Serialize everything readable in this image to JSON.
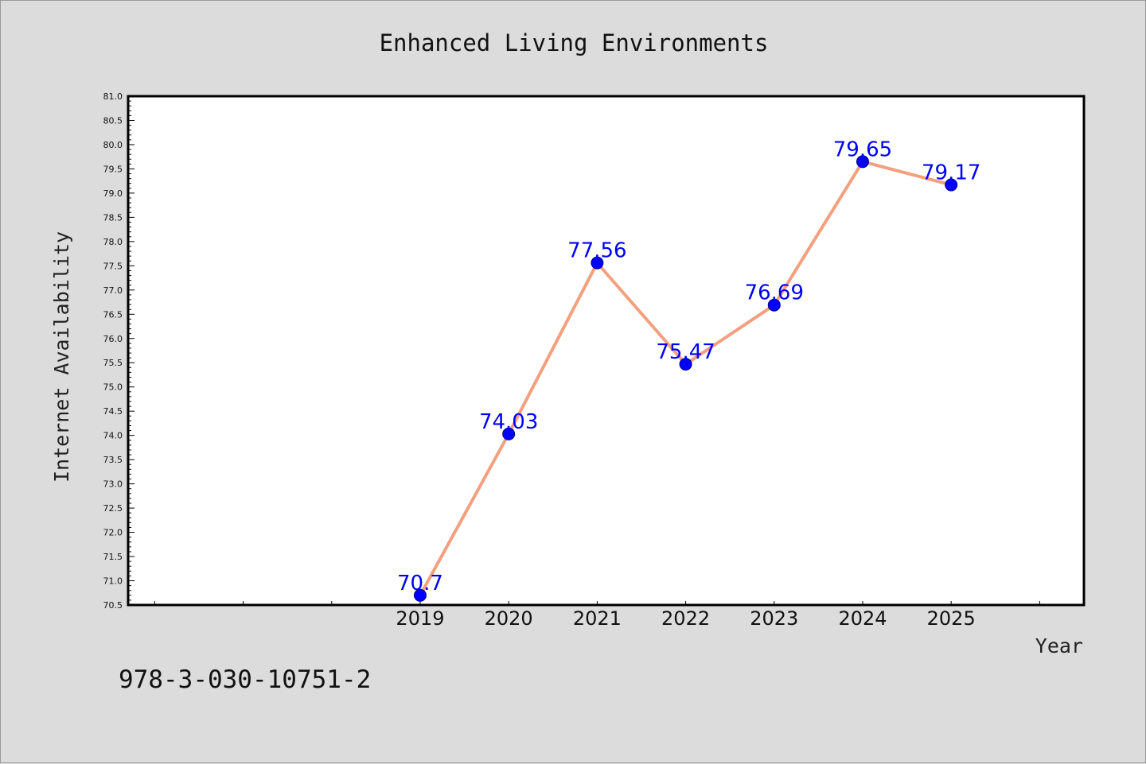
{
  "figure": {
    "footer": "978-3-030-10751-2",
    "background": "#dcdcdc",
    "plot_background": "#ffffff"
  },
  "chart_data": {
    "type": "line",
    "title": "Enhanced Living Environments",
    "xlabel": "Year",
    "ylabel": "Internet Availability",
    "x": [
      2019,
      2020,
      2021,
      2022,
      2023,
      2024,
      2025
    ],
    "xlim": [
      2015.7,
      2026.5
    ],
    "xticks": [
      2019,
      2020,
      2021,
      2022,
      2023,
      2024,
      2025
    ],
    "series": [
      {
        "values": [
          70.7,
          74.03,
          77.56,
          75.47,
          76.69,
          79.65,
          79.17
        ],
        "labels": [
          "70.7",
          "74.03",
          "77.56",
          "75.47",
          "76.69",
          "79.65",
          "79.17"
        ],
        "line_color": "#f4a07f",
        "marker_color": "#0000ff"
      }
    ],
    "ylim": [
      70.5,
      81.0
    ],
    "ytick_step": 0.5,
    "grid": false,
    "legend": "none"
  }
}
